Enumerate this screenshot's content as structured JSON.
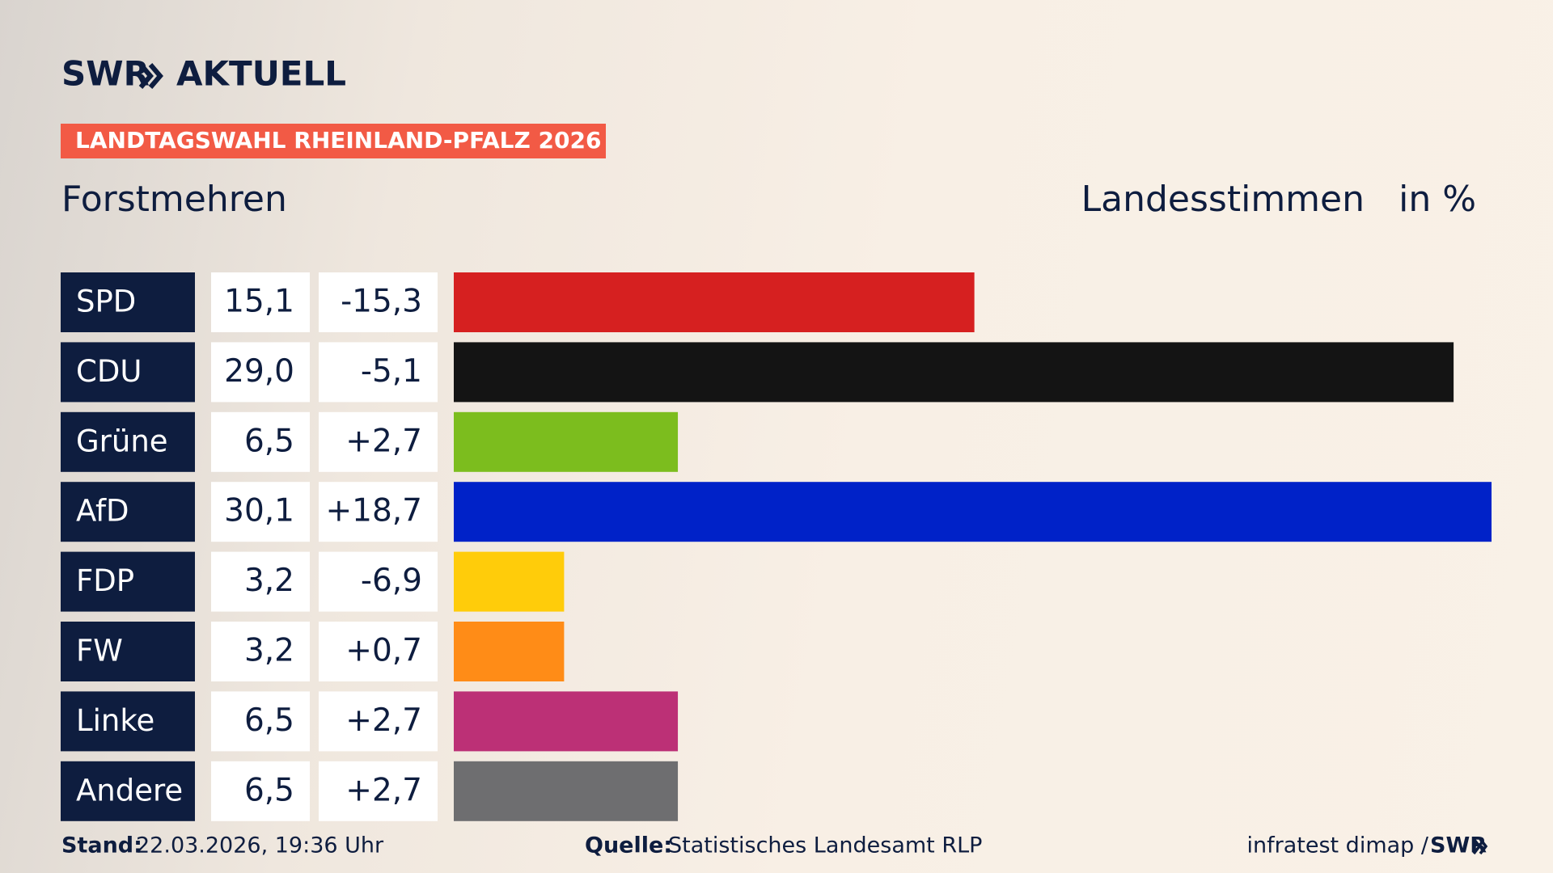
{
  "header": {
    "logo": "SWR",
    "logo_name": "AKTUELL",
    "tag": "LANDTAGSWAHL RHEINLAND-PFALZ 2026"
  },
  "chart_data": {
    "type": "bar",
    "title": "Forstmehren",
    "subtitle": "Landesstimmen",
    "unit": "in %",
    "categories": [
      "SPD",
      "CDU",
      "Grüne",
      "AfD",
      "FDP",
      "FW",
      "Linke",
      "Andere"
    ],
    "values": [
      15.1,
      29.0,
      6.5,
      30.1,
      3.2,
      3.2,
      6.5,
      6.5
    ],
    "value_labels": [
      "15,1",
      "29,0",
      "6,5",
      "30,1",
      "3,2",
      "3,2",
      "6,5",
      "6,5"
    ],
    "changes": [
      "-15,3",
      "-5,1",
      "+2,7",
      "+18,7",
      "-6,9",
      "+0,7",
      "+2,7",
      "+2,7"
    ],
    "colors": [
      "#d62020",
      "#141414",
      "#7cbd1e",
      "#0022c8",
      "#ffcc0a",
      "#ff8c17",
      "#bc3076",
      "#6e6e70"
    ]
  },
  "footer": {
    "stand_label": "Stand:",
    "stand": "22.03.2026, 19:36 Uhr",
    "source_label": "Quelle:",
    "source": "Statistisches Landesamt RLP",
    "credit": "infratest dimap /",
    "logo": "SWR"
  }
}
